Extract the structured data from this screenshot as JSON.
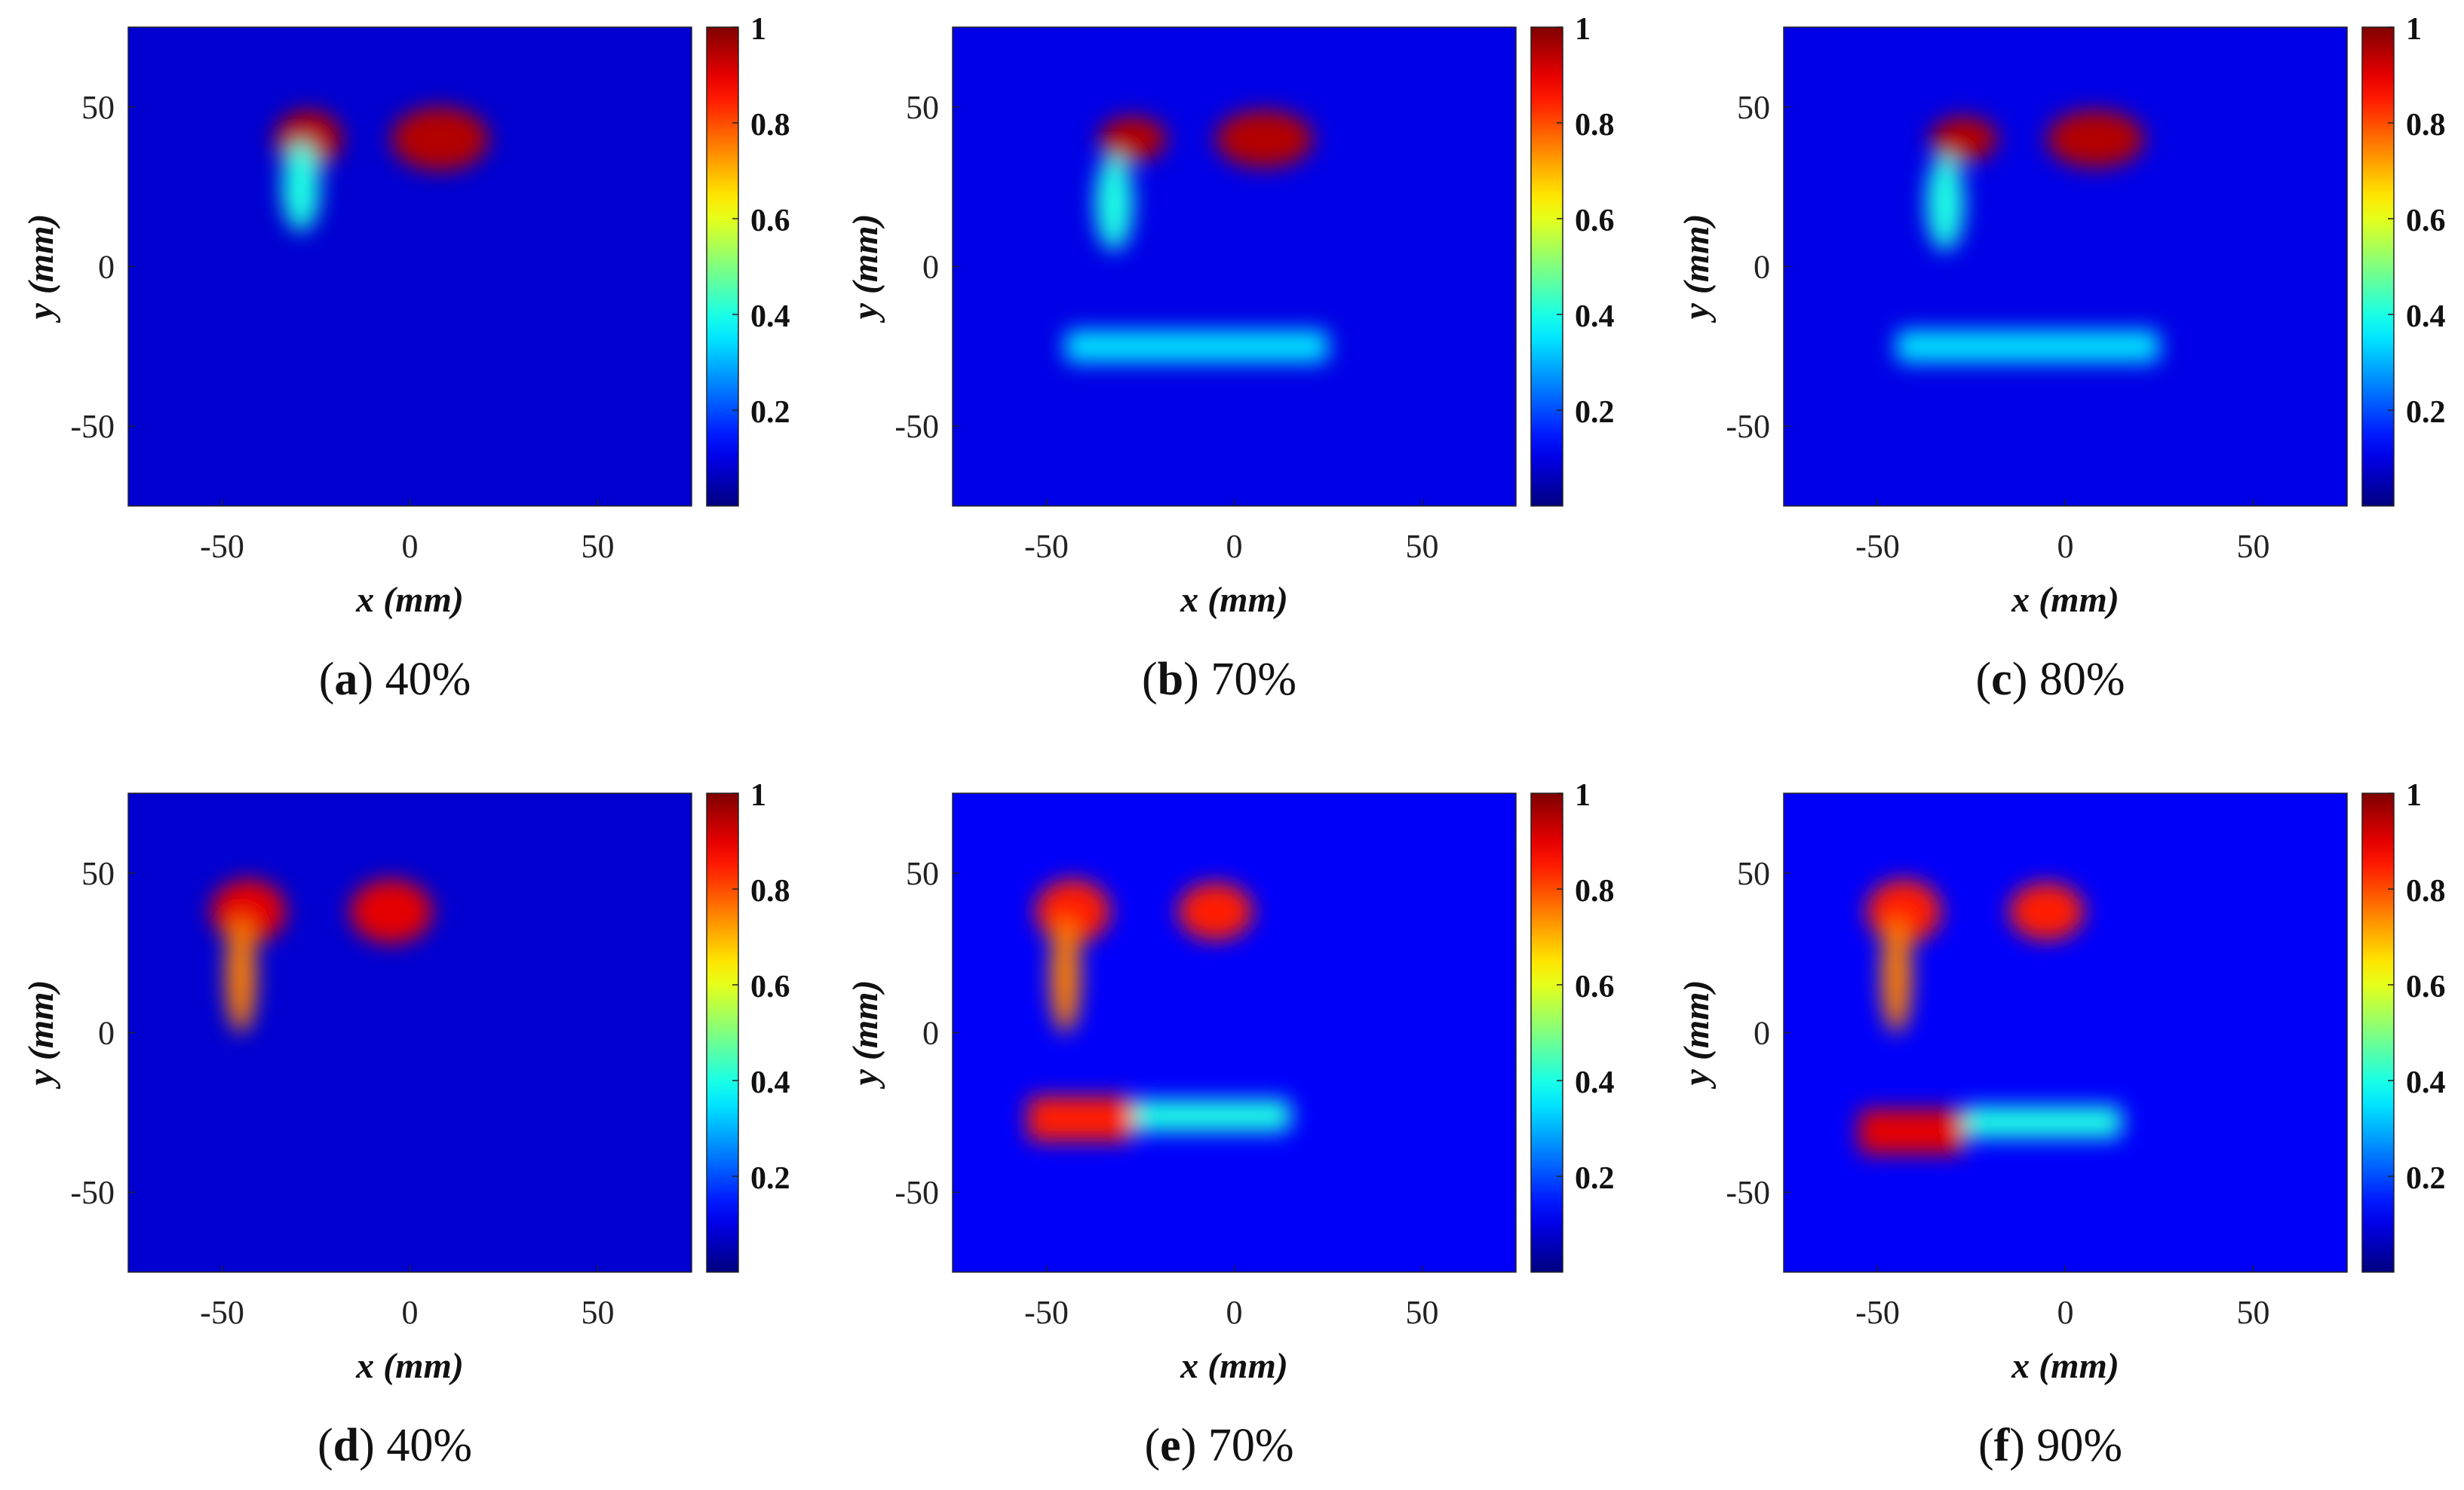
{
  "axis": {
    "xlabel": "x (mm)",
    "ylabel": "y (mm)",
    "xticks": [
      -50,
      0,
      50
    ],
    "yticks": [
      50,
      0,
      -50
    ],
    "xlim": [
      -75,
      75
    ],
    "ylim": [
      -75,
      75
    ]
  },
  "colorbar": {
    "ticks": [
      "1",
      "0.8",
      "0.6",
      "0.4",
      "0.2"
    ],
    "range": [
      0,
      1
    ],
    "colormap": "jet"
  },
  "colors": {
    "background": "#0b1fb8"
  },
  "chart_data": [
    {
      "type": "heatmap",
      "caption_letter": "a",
      "caption_value": "40%",
      "xlabel": "x (mm)",
      "ylabel": "y (mm)",
      "xlim": [
        -75,
        75
      ],
      "ylim": [
        -75,
        75
      ],
      "zlim": [
        0,
        1
      ],
      "background": 0.08,
      "features": [
        {
          "shape": "blob",
          "x": -27,
          "y": 40,
          "rx": 9,
          "ry": 9,
          "value": 0.95
        },
        {
          "shape": "blob",
          "x": -29,
          "y": 25,
          "rx": 5,
          "ry": 14,
          "value": 0.4
        },
        {
          "shape": "blob",
          "x": 8,
          "y": 40,
          "rx": 13,
          "ry": 10,
          "value": 0.95
        }
      ]
    },
    {
      "type": "heatmap",
      "caption_letter": "b",
      "caption_value": "70%",
      "xlabel": "x (mm)",
      "ylabel": "y (mm)",
      "xlim": [
        -75,
        75
      ],
      "ylim": [
        -75,
        75
      ],
      "zlim": [
        0,
        1
      ],
      "background": 0.1,
      "features": [
        {
          "shape": "blob",
          "x": -27,
          "y": 40,
          "rx": 9,
          "ry": 7,
          "value": 0.95
        },
        {
          "shape": "blob",
          "x": -32,
          "y": 20,
          "rx": 5,
          "ry": 15,
          "value": 0.4
        },
        {
          "shape": "blob",
          "x": 8,
          "y": 40,
          "rx": 13,
          "ry": 9,
          "value": 0.95
        },
        {
          "shape": "bar",
          "x": [
            -45,
            25
          ],
          "y": -25,
          "h": 10,
          "value": 0.35
        }
      ]
    },
    {
      "type": "heatmap",
      "caption_letter": "c",
      "caption_value": "80%",
      "xlabel": "x (mm)",
      "ylabel": "y (mm)",
      "xlim": [
        -75,
        75
      ],
      "ylim": [
        -75,
        75
      ],
      "zlim": [
        0,
        1
      ],
      "background": 0.1,
      "features": [
        {
          "shape": "blob",
          "x": -27,
          "y": 40,
          "rx": 9,
          "ry": 7,
          "value": 0.95
        },
        {
          "shape": "blob",
          "x": -32,
          "y": 20,
          "rx": 5,
          "ry": 15,
          "value": 0.4
        },
        {
          "shape": "blob",
          "x": 8,
          "y": 40,
          "rx": 13,
          "ry": 9,
          "value": 0.95
        },
        {
          "shape": "bar",
          "x": [
            -45,
            25
          ],
          "y": -25,
          "h": 10,
          "value": 0.35
        }
      ]
    },
    {
      "type": "heatmap",
      "caption_letter": "d",
      "caption_value": "40%",
      "xlabel": "x (mm)",
      "ylabel": "y (mm)",
      "xlim": [
        -75,
        75
      ],
      "ylim": [
        -75,
        75
      ],
      "zlim": [
        0,
        1
      ],
      "background": 0.08,
      "features": [
        {
          "shape": "blob",
          "x": -43,
          "y": 38,
          "rx": 10,
          "ry": 10,
          "value": 0.9
        },
        {
          "shape": "blob",
          "x": -45,
          "y": 18,
          "rx": 4,
          "ry": 18,
          "value": 0.75
        },
        {
          "shape": "blob",
          "x": -5,
          "y": 38,
          "rx": 11,
          "ry": 10,
          "value": 0.9
        }
      ]
    },
    {
      "type": "heatmap",
      "caption_letter": "e",
      "caption_value": "70%",
      "xlabel": "x (mm)",
      "ylabel": "y (mm)",
      "xlim": [
        -75,
        75
      ],
      "ylim": [
        -75,
        75
      ],
      "zlim": [
        0,
        1
      ],
      "background": 0.12,
      "features": [
        {
          "shape": "blob",
          "x": -43,
          "y": 38,
          "rx": 10,
          "ry": 10,
          "value": 0.85
        },
        {
          "shape": "blob",
          "x": -45,
          "y": 18,
          "rx": 4,
          "ry": 18,
          "value": 0.75
        },
        {
          "shape": "blob",
          "x": -5,
          "y": 38,
          "rx": 10,
          "ry": 9,
          "value": 0.85
        },
        {
          "shape": "bar",
          "x": [
            -55,
            -27
          ],
          "y": -27,
          "h": 14,
          "value": 0.85
        },
        {
          "shape": "bar",
          "x": [
            -27,
            15
          ],
          "y": -26,
          "h": 10,
          "value": 0.4
        }
      ]
    },
    {
      "type": "heatmap",
      "caption_letter": "f",
      "caption_value": "90%",
      "xlabel": "x (mm)",
      "ylabel": "y (mm)",
      "xlim": [
        -75,
        75
      ],
      "ylim": [
        -75,
        75
      ],
      "zlim": [
        0,
        1
      ],
      "background": 0.12,
      "features": [
        {
          "shape": "blob",
          "x": -43,
          "y": 38,
          "rx": 10,
          "ry": 10,
          "value": 0.85
        },
        {
          "shape": "blob",
          "x": -45,
          "y": 18,
          "rx": 4,
          "ry": 18,
          "value": 0.75
        },
        {
          "shape": "blob",
          "x": -5,
          "y": 38,
          "rx": 10,
          "ry": 9,
          "value": 0.85
        },
        {
          "shape": "bar",
          "x": [
            -55,
            -27
          ],
          "y": -31,
          "h": 14,
          "value": 0.9
        },
        {
          "shape": "bar",
          "x": [
            -27,
            15
          ],
          "y": -28,
          "h": 10,
          "value": 0.4
        }
      ]
    }
  ]
}
